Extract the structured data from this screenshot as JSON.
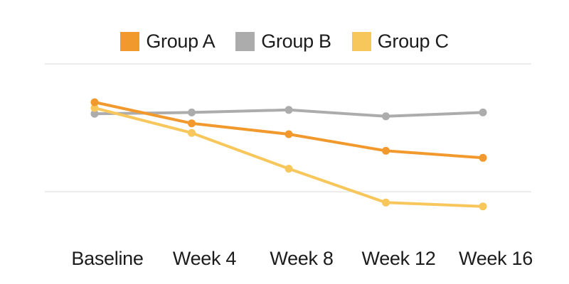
{
  "chart": {
    "gridline_color": "#e6e6e6",
    "text_color": "#1c1c1c",
    "background": "#ffffff"
  },
  "chart_data": {
    "type": "line",
    "title": "",
    "xlabel": "",
    "ylabel": "",
    "categories": [
      "Baseline",
      "Week 4",
      "Week 8",
      "Week 12",
      "Week 16"
    ],
    "series": [
      {
        "name": "Group A",
        "color": "#F2992E",
        "values": [
          70,
          53.5,
          45,
          32,
          26.5
        ]
      },
      {
        "name": "Group B",
        "color": "#ACACAC",
        "values": [
          61,
          62,
          64,
          59,
          62
        ]
      },
      {
        "name": "Group C",
        "color": "#F8C75C",
        "values": [
          65.5,
          46,
          18,
          -8.5,
          -11.5
        ]
      }
    ],
    "ylim": [
      0,
      100
    ],
    "y_axis_labels_visible": false,
    "gridline_values": [
      0,
      100
    ],
    "grid": "horizontal-only",
    "legend_position": "top",
    "markers": "circle"
  }
}
